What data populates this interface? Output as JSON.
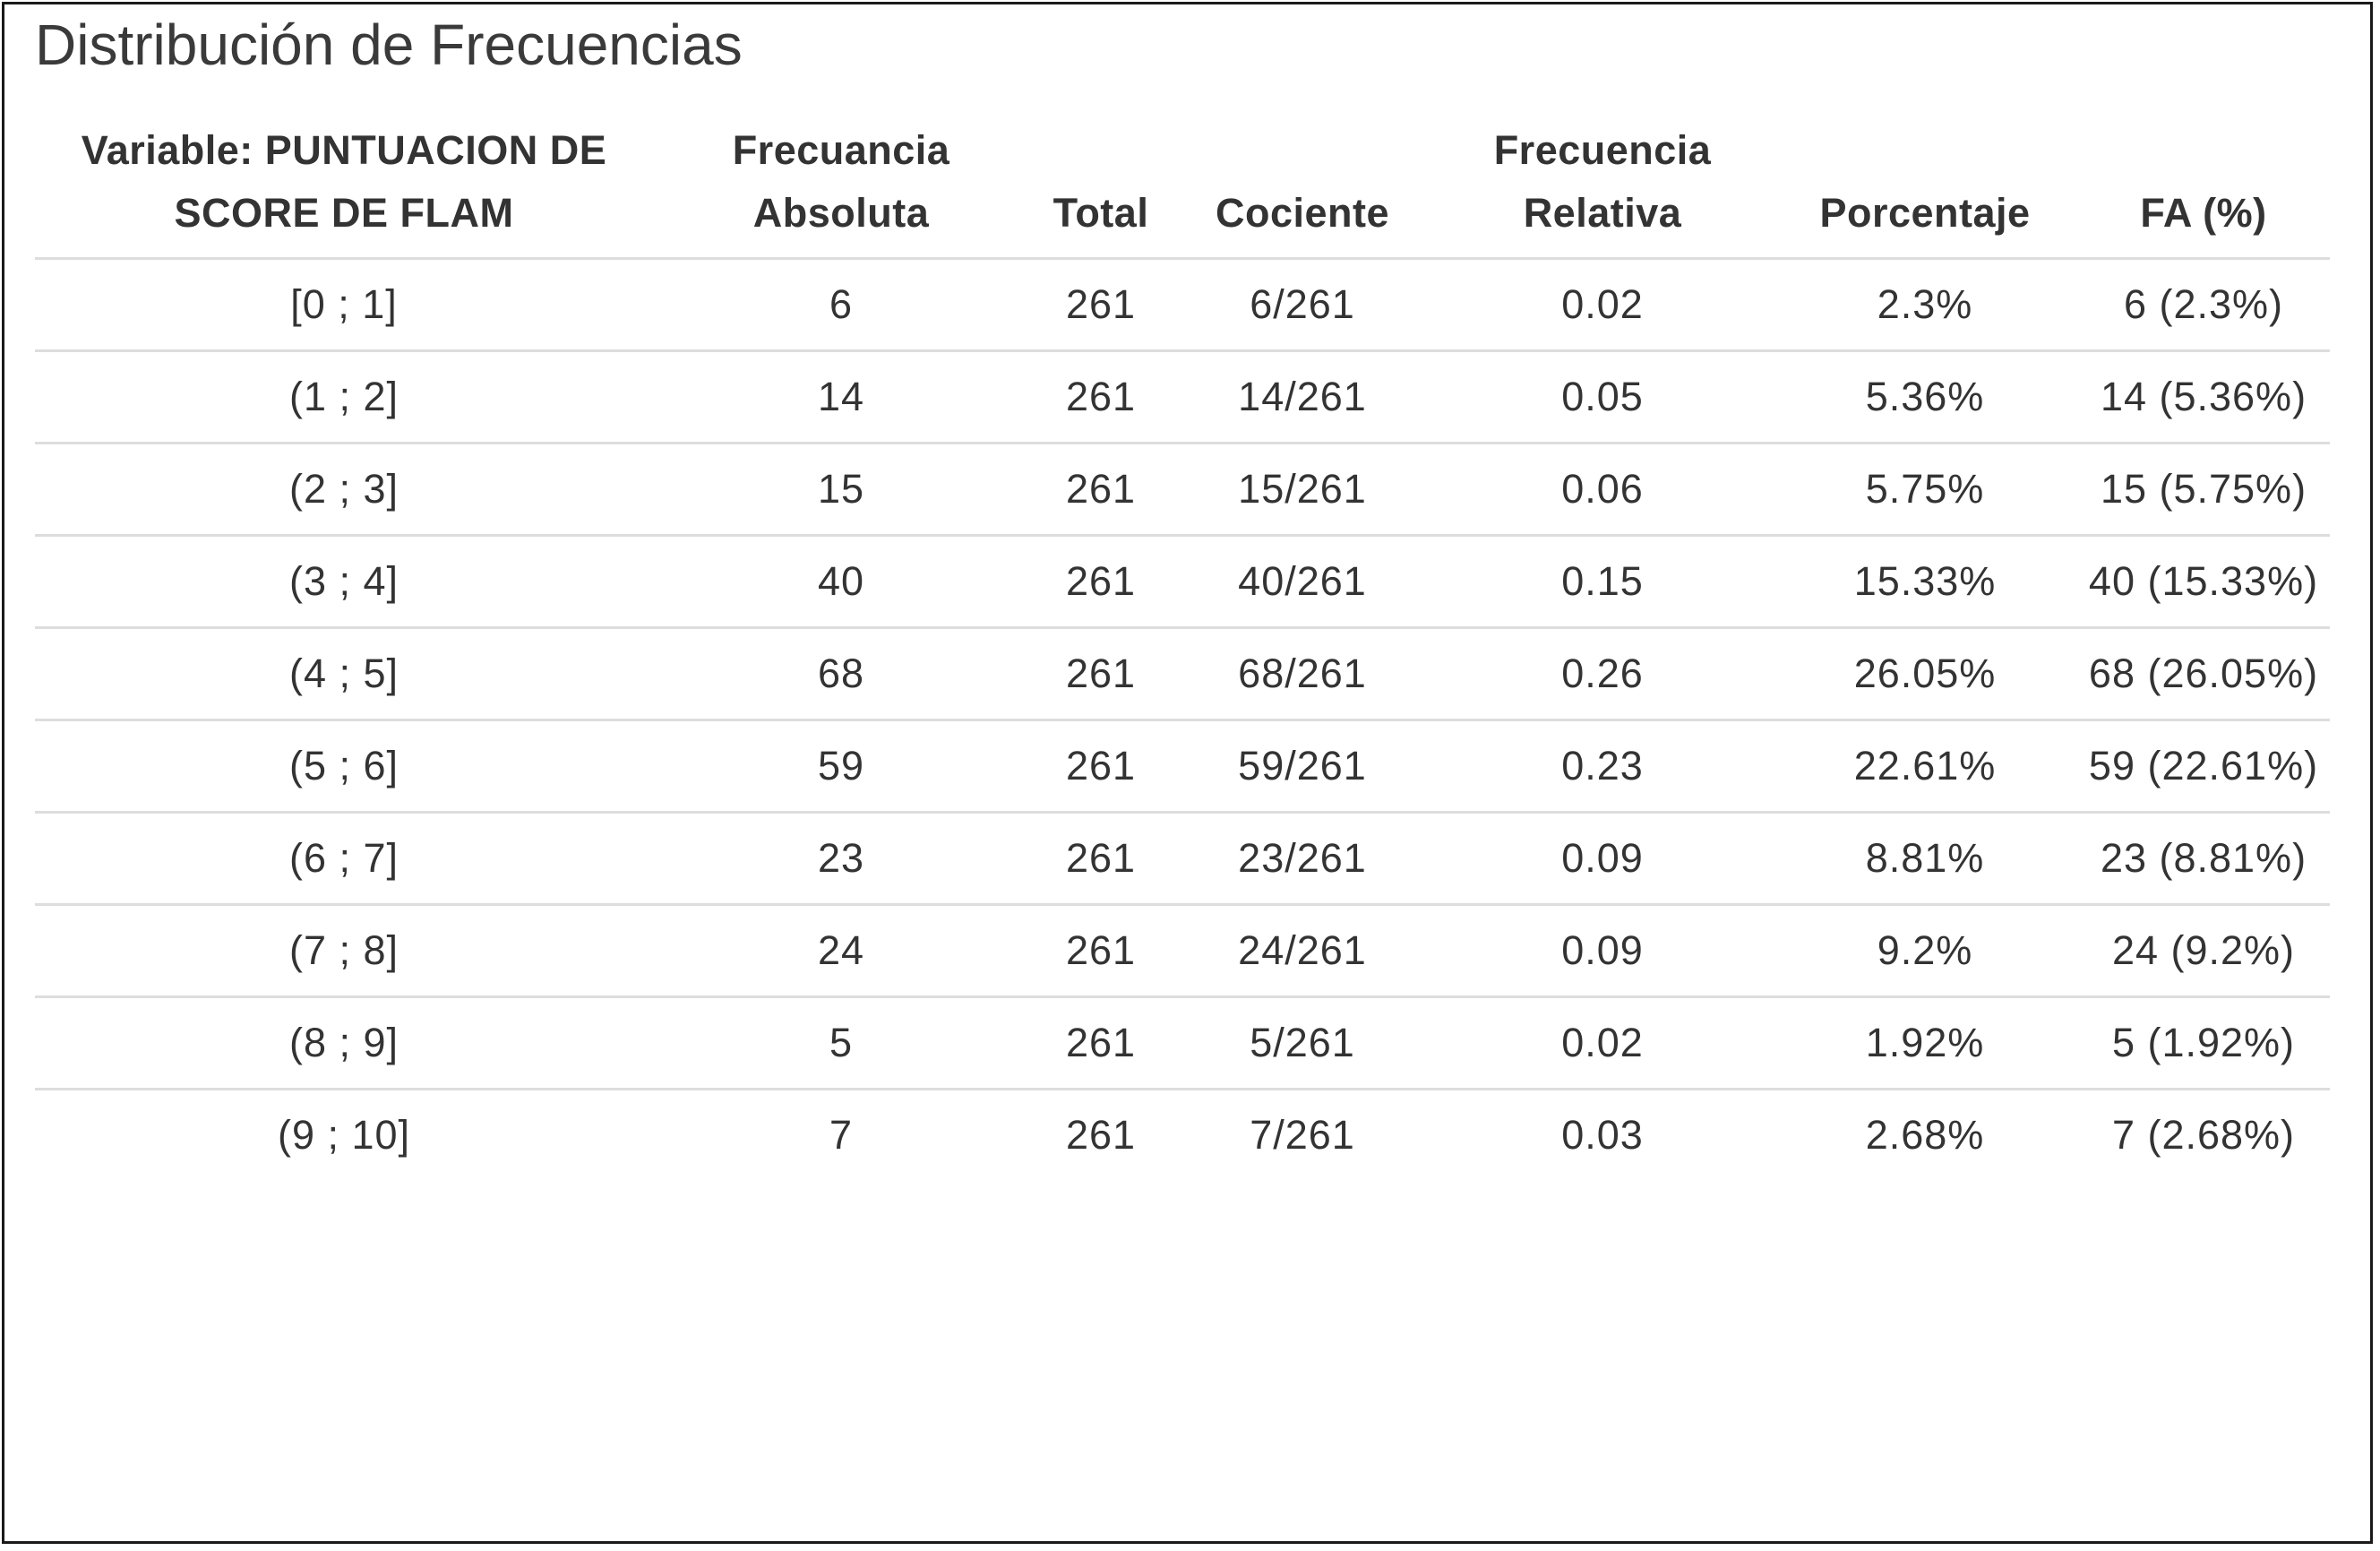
{
  "title": "Distribución de Frecuencias",
  "headers": {
    "variable": "Variable: PUNTUACION DE SCORE DE FLAM",
    "frecuencia_absoluta": "Frecuancia Absoluta",
    "total": "Total",
    "cociente": "Cociente",
    "frecuencia_relativa": "Frecuencia Relativa",
    "porcentaje": "Porcentaje",
    "fa_pct": "FA (%)"
  },
  "rows": [
    {
      "interval": "[0 ; 1]",
      "abs": "6",
      "total": "261",
      "cociente": "6/261",
      "rel": "0.02",
      "pct": "2.3%",
      "fa": "6 (2.3%)"
    },
    {
      "interval": "(1 ; 2]",
      "abs": "14",
      "total": "261",
      "cociente": "14/261",
      "rel": "0.05",
      "pct": "5.36%",
      "fa": "14 (5.36%)"
    },
    {
      "interval": "(2 ; 3]",
      "abs": "15",
      "total": "261",
      "cociente": "15/261",
      "rel": "0.06",
      "pct": "5.75%",
      "fa": "15 (5.75%)"
    },
    {
      "interval": "(3 ; 4]",
      "abs": "40",
      "total": "261",
      "cociente": "40/261",
      "rel": "0.15",
      "pct": "15.33%",
      "fa": "40 (15.33%)"
    },
    {
      "interval": "(4 ; 5]",
      "abs": "68",
      "total": "261",
      "cociente": "68/261",
      "rel": "0.26",
      "pct": "26.05%",
      "fa": "68 (26.05%)"
    },
    {
      "interval": "(5 ; 6]",
      "abs": "59",
      "total": "261",
      "cociente": "59/261",
      "rel": "0.23",
      "pct": "22.61%",
      "fa": "59 (22.61%)"
    },
    {
      "interval": "(6 ; 7]",
      "abs": "23",
      "total": "261",
      "cociente": "23/261",
      "rel": "0.09",
      "pct": "8.81%",
      "fa": "23 (8.81%)"
    },
    {
      "interval": "(7 ; 8]",
      "abs": "24",
      "total": "261",
      "cociente": "24/261",
      "rel": "0.09",
      "pct": "9.2%",
      "fa": "24 (9.2%)"
    },
    {
      "interval": "(8 ; 9]",
      "abs": "5",
      "total": "261",
      "cociente": "5/261",
      "rel": "0.02",
      "pct": "1.92%",
      "fa": "5 (1.92%)"
    },
    {
      "interval": "(9 ; 10]",
      "abs": "7",
      "total": "261",
      "cociente": "7/261",
      "rel": "0.03",
      "pct": "2.68%",
      "fa": "7 (2.68%)"
    }
  ]
}
